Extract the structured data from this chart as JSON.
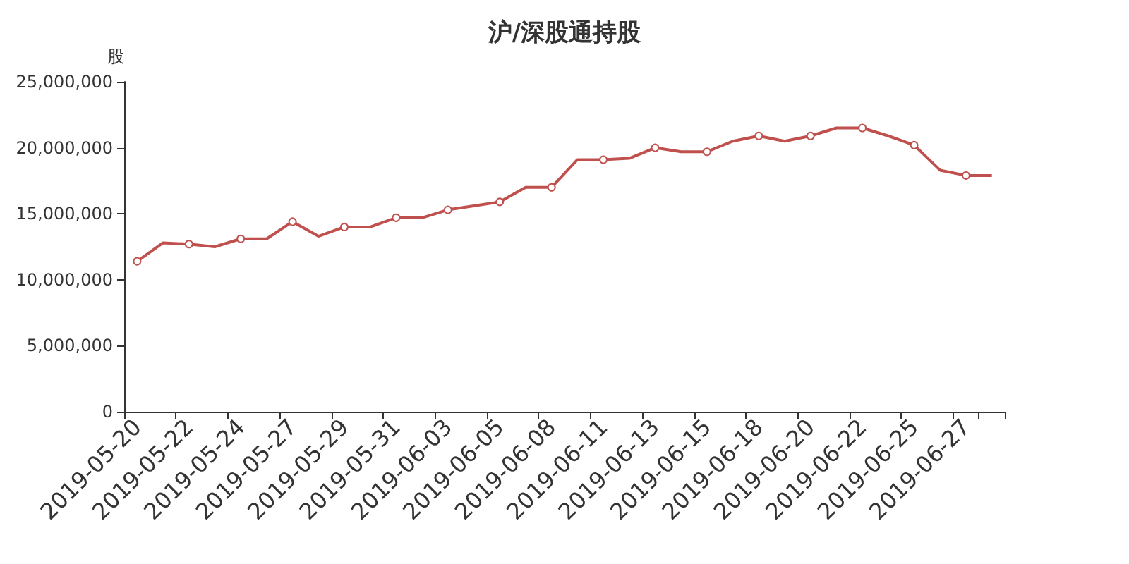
{
  "chart_data": {
    "type": "line",
    "title": "沪/深股通持股",
    "ylabel": "股",
    "categories": [
      "2019-05-20",
      null,
      "2019-05-22",
      null,
      "2019-05-24",
      null,
      "2019-05-27",
      null,
      "2019-05-29",
      null,
      "2019-05-31",
      null,
      "2019-06-03",
      null,
      "2019-06-05",
      null,
      "2019-06-08",
      null,
      "2019-06-11",
      null,
      "2019-06-13",
      null,
      "2019-06-15",
      null,
      "2019-06-18",
      null,
      "2019-06-20",
      null,
      "2019-06-22",
      null,
      "2019-06-25",
      null,
      "2019-06-27",
      null
    ],
    "series": [
      {
        "color": "#c0504d",
        "values": [
          11400000,
          12800000,
          12700000,
          12500000,
          13100000,
          13100000,
          14400000,
          13300000,
          14000000,
          14000000,
          14700000,
          14700000,
          15300000,
          15600000,
          15900000,
          17000000,
          17000000,
          19100000,
          19100000,
          19200000,
          20000000,
          19700000,
          19700000,
          20500000,
          20900000,
          20500000,
          20900000,
          21500000,
          21500000,
          20900000,
          20200000,
          18300000,
          17900000,
          17900000
        ]
      }
    ],
    "ylim": [
      0,
      25000000
    ],
    "yticks": [
      0,
      {
        "value": 5000000,
        "label": "5,000,000"
      },
      {
        "value": 10000000,
        "label": "10,000,000"
      },
      {
        "value": 15000000,
        "label": "15,000,000"
      },
      {
        "value": 20000000,
        "label": "20,000,000"
      },
      {
        "value": 25000000,
        "label": "25,000,000"
      }
    ],
    "grid": false,
    "marker": "circle",
    "line_style": "solid"
  }
}
